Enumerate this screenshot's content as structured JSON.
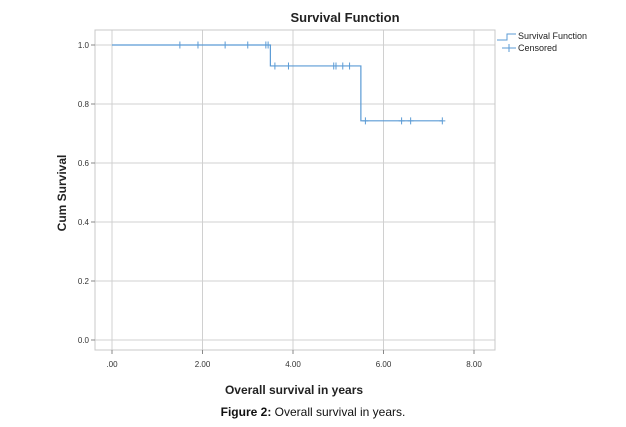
{
  "chart_data": {
    "type": "line",
    "title": "Survival Function",
    "xlabel": "Overall survival in years",
    "ylabel": "Cum Survival",
    "xlim": [
      0,
      8
    ],
    "ylim": [
      0,
      1
    ],
    "x_ticks": [
      ".00",
      "2.00",
      "4.00",
      "6.00",
      "8.00"
    ],
    "x_tick_values": [
      0,
      2,
      4,
      6,
      8
    ],
    "y_ticks": [
      "0.0",
      "0.2",
      "0.4",
      "0.6",
      "0.8",
      "1.0"
    ],
    "y_tick_values": [
      0,
      0.2,
      0.4,
      0.6,
      0.8,
      1.0
    ],
    "grid": true,
    "legend_position": "top-right",
    "series": [
      {
        "name": "Survival Function",
        "kind": "step",
        "x": [
          0,
          3.5,
          5.5,
          7.3
        ],
        "y": [
          1.0,
          0.929,
          0.743,
          0.743
        ]
      },
      {
        "name": "Censored",
        "kind": "censor-marks",
        "x": [
          1.5,
          1.9,
          2.5,
          3.0,
          3.4,
          3.45,
          3.6,
          3.9,
          4.9,
          4.95,
          5.1,
          5.25,
          5.6,
          6.4,
          6.6,
          7.3
        ],
        "y": [
          1.0,
          1.0,
          1.0,
          1.0,
          1.0,
          1.0,
          0.929,
          0.929,
          0.929,
          0.929,
          0.929,
          0.929,
          0.743,
          0.743,
          0.743,
          0.743
        ]
      }
    ],
    "line_color": "#5b9bd5"
  },
  "caption": {
    "label": "Figure 2:",
    "text": " Overall survival in years."
  }
}
